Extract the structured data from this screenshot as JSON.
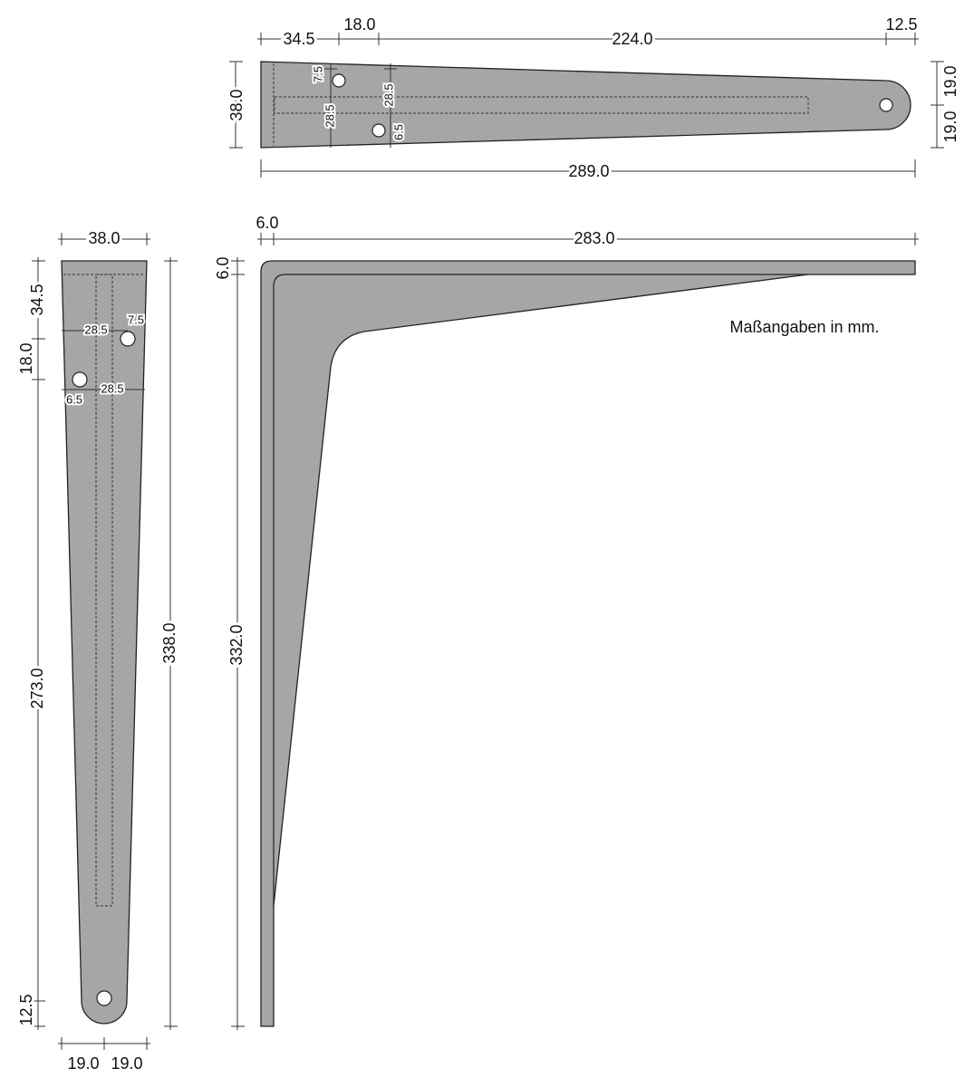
{
  "top_view": {
    "dimensions": [
      "34.5",
      "18.0",
      "224.0",
      "12.5",
      "38.0",
      "19.0",
      "19.0",
      "289.0"
    ],
    "hole_dimensions": [
      "7.5",
      "28.5",
      "28.5",
      "6.5"
    ]
  },
  "front_view": {
    "dimensions": [
      "38.0",
      "34.5",
      "18.0",
      "273.0",
      "12.5",
      "338.0",
      "19.0",
      "19.0"
    ],
    "hole_dimensions": [
      "28.5",
      "7.5",
      "28.5",
      "6.5"
    ]
  },
  "side_view": {
    "dimensions": [
      "6.0",
      "283.0",
      "6.0",
      "332.0"
    ]
  },
  "note": "Maßangaben in mm."
}
